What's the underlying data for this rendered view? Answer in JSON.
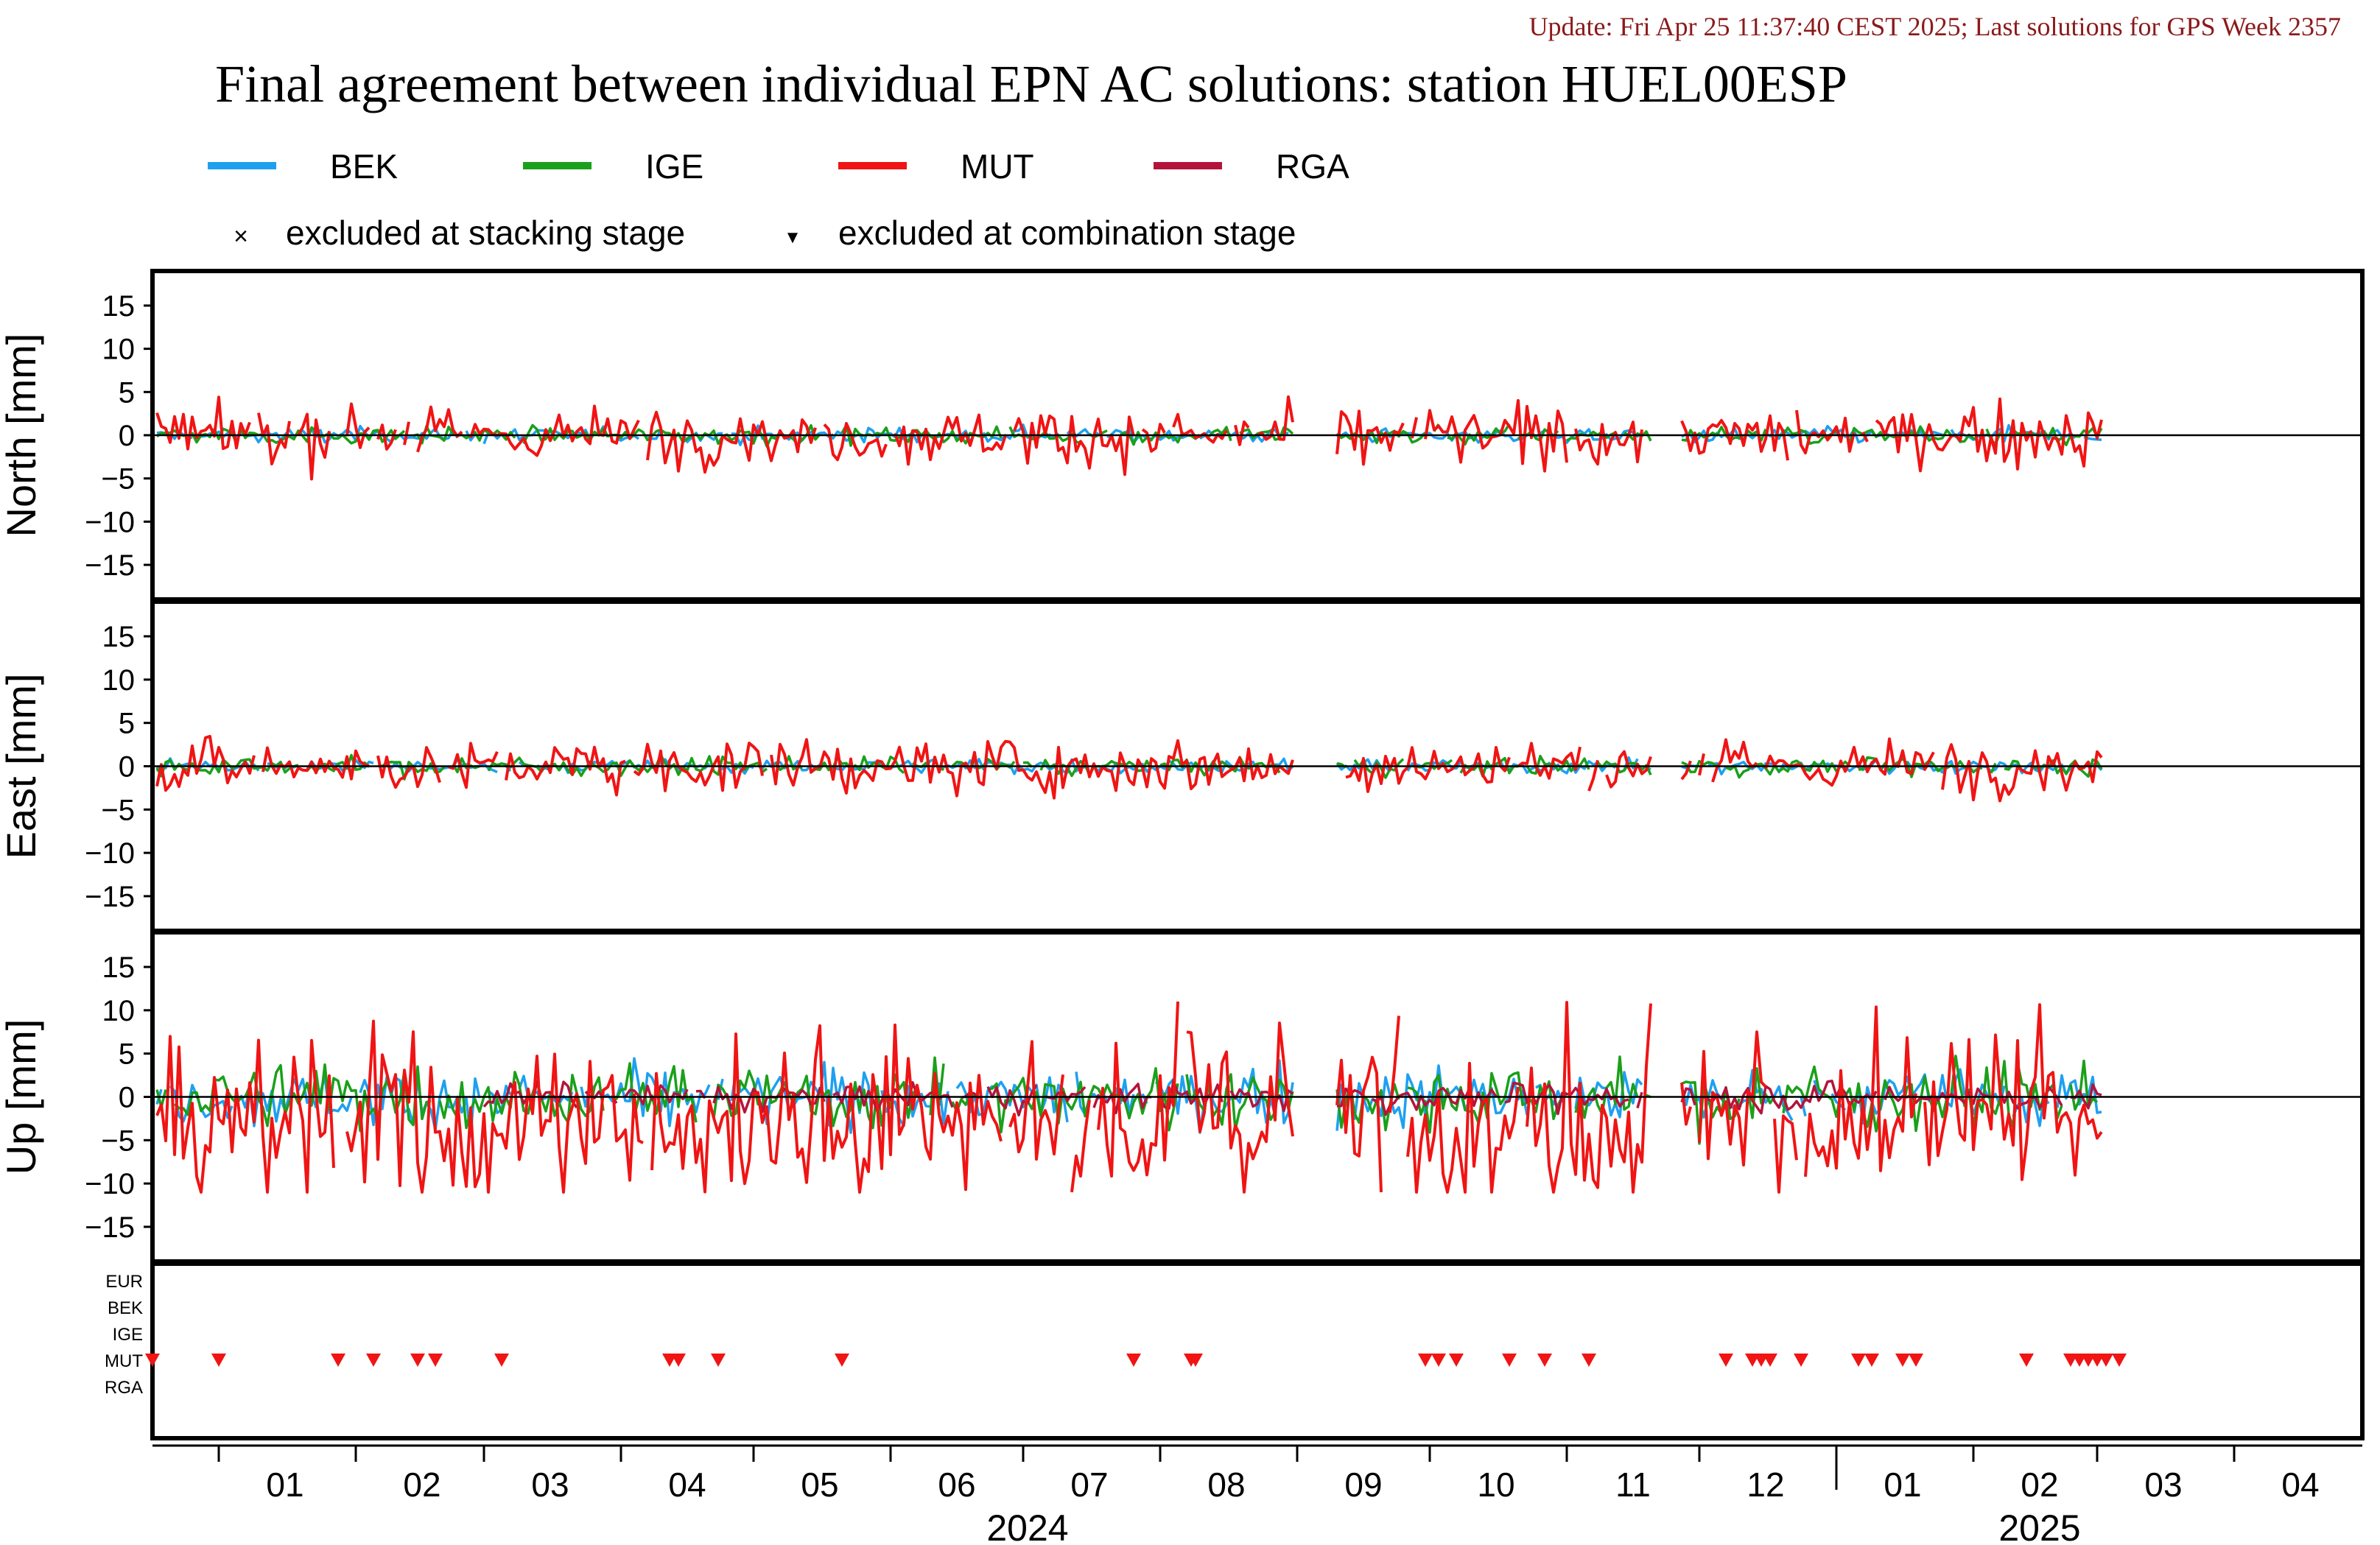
{
  "header": {
    "update": "Update: Fri Apr 25 11:37:40 CEST 2025; Last solutions for GPS Week 2357",
    "title": "Final agreement between individual EPN AC solutions: station HUEL00ESP"
  },
  "legend": {
    "series": [
      {
        "name": "BEK",
        "color": "#1ea0f0"
      },
      {
        "name": "IGE",
        "color": "#1aa01a"
      },
      {
        "name": "MUT",
        "color": "#f01414"
      },
      {
        "name": "RGA",
        "color": "#b4143c"
      }
    ],
    "markers": [
      {
        "symbol": "×",
        "label": "excluded at stacking stage"
      },
      {
        "symbol": "▼",
        "label": "excluded at combination stage"
      }
    ]
  },
  "panels": [
    {
      "id": "north",
      "ylabel": "North [mm]"
    },
    {
      "id": "east",
      "ylabel": "East [mm]"
    },
    {
      "id": "up",
      "ylabel": "Up [mm]"
    }
  ],
  "ac_labels": [
    {
      "name": "EUR",
      "color": "#000000"
    },
    {
      "name": "BEK",
      "color": "#1ea0f0"
    },
    {
      "name": "IGE",
      "color": "#1aa01a"
    },
    {
      "name": "MUT",
      "color": "#f01414"
    },
    {
      "name": "RGA",
      "color": "#b4143c"
    }
  ],
  "chart_data": {
    "type": "line",
    "x_unit": "days since 2024-01-01",
    "xlim": [
      -15,
      485
    ],
    "ylim": [
      -19,
      19
    ],
    "yticks": [
      -15,
      -10,
      -5,
      0,
      5,
      10,
      15
    ],
    "month_labels": [
      {
        "label": "01",
        "x": 15
      },
      {
        "label": "02",
        "x": 46
      },
      {
        "label": "03",
        "x": 75
      },
      {
        "label": "04",
        "x": 106
      },
      {
        "label": "05",
        "x": 136
      },
      {
        "label": "06",
        "x": 167
      },
      {
        "label": "07",
        "x": 197
      },
      {
        "label": "08",
        "x": 228
      },
      {
        "label": "09",
        "x": 259
      },
      {
        "label": "10",
        "x": 289
      },
      {
        "label": "11",
        "x": 320
      },
      {
        "label": "12",
        "x": 350
      },
      {
        "label": "01",
        "x": 381
      },
      {
        "label": "02",
        "x": 412
      },
      {
        "label": "03",
        "x": 440
      },
      {
        "label": "04",
        "x": 471
      }
    ],
    "month_ticks": [
      0,
      31,
      60,
      91,
      121,
      152,
      182,
      213,
      244,
      274,
      305,
      335,
      366,
      397,
      425,
      456
    ],
    "year_ticks": [
      366
    ],
    "year_labels": [
      {
        "label": "2024",
        "x": 183
      },
      {
        "label": "2025",
        "x": 412
      }
    ],
    "gaps": [
      [
        244,
        252
      ],
      [
        325,
        330
      ]
    ],
    "data_end": 426,
    "series_stats": {
      "north": {
        "BEK": 0.4,
        "IGE": 0.5,
        "MUT": 1.6,
        "RGA": 0.3
      },
      "east": {
        "BEK": 0.4,
        "IGE": 0.5,
        "MUT": 1.5,
        "RGA": 0.3
      },
      "up": {
        "BEK": 1.6,
        "IGE": 1.8,
        "MUT": 4.0,
        "RGA": 0.8
      }
    },
    "up_mut_bias": -3.5,
    "excluded_combination": {
      "ac": "MUT",
      "x": [
        -15,
        0,
        27,
        35,
        45,
        49,
        64,
        102,
        104,
        113,
        141,
        207,
        220,
        221,
        273,
        276,
        280,
        292,
        300,
        310,
        341,
        347,
        349,
        351,
        358,
        371,
        374,
        381,
        384,
        409,
        419,
        421,
        423,
        425,
        427,
        430
      ]
    }
  }
}
